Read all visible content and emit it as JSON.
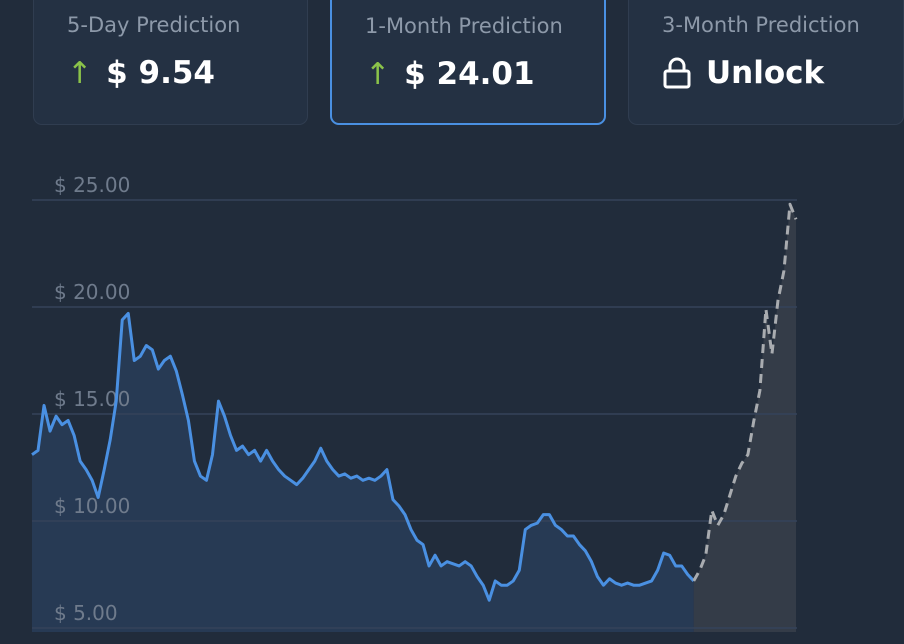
{
  "cards": [
    {
      "label": "5-Day Prediction",
      "value": "$ 9.54"
    },
    {
      "label": "1-Month Prediction",
      "value": "$ 24.01"
    },
    {
      "label": "3-Month Prediction",
      "value": "Unlock"
    }
  ],
  "chart_data": {
    "type": "line",
    "ylim": [
      5,
      25
    ],
    "yticks": [
      {
        "value": 25,
        "label": "$ 25.00"
      },
      {
        "value": 20,
        "label": "$ 20.00"
      },
      {
        "value": 15,
        "label": "$ 15.00"
      },
      {
        "value": 10,
        "label": "$ 10.00"
      },
      {
        "value": 5,
        "label": "$ 5.00"
      }
    ],
    "grid": true,
    "series": [
      {
        "color": "#4a90e2",
        "dashed": false,
        "values": [
          13.1,
          13.3,
          15.4,
          14.2,
          14.9,
          14.5,
          14.7,
          14.0,
          12.8,
          12.4,
          11.9,
          11.1,
          12.4,
          13.8,
          15.6,
          19.4,
          19.7,
          17.5,
          17.7,
          18.2,
          18.0,
          17.1,
          17.5,
          17.7,
          17.0,
          15.9,
          14.7,
          12.8,
          12.1,
          11.9,
          13.1,
          15.6,
          14.9,
          14.0,
          13.3,
          13.5,
          13.1,
          13.3,
          12.8,
          13.3,
          12.8,
          12.4,
          12.1,
          11.9,
          11.7,
          12.0,
          12.4,
          12.8,
          13.4,
          12.8,
          12.4,
          12.1,
          12.2,
          12.0,
          12.1,
          11.9,
          12.0,
          11.9,
          12.1,
          12.4,
          11.0,
          10.7,
          10.3,
          9.6,
          9.1,
          8.9,
          7.9,
          8.4,
          7.9,
          8.1,
          8.0,
          7.9,
          8.1,
          7.9,
          7.4,
          7.0,
          6.3,
          7.2,
          7.0,
          7.0,
          7.2,
          7.7,
          9.6,
          9.8,
          9.9,
          10.3,
          10.3,
          9.8,
          9.6,
          9.3,
          9.3,
          8.9,
          8.6,
          8.1,
          7.4,
          7.0,
          7.3,
          7.1,
          7.0,
          7.1,
          7.0,
          7.0,
          7.1,
          7.2,
          7.7,
          8.5,
          8.4,
          7.9,
          7.9,
          7.5,
          7.2,
          null,
          null,
          null,
          null,
          null,
          null,
          null,
          null,
          null,
          null,
          null,
          null,
          null,
          null,
          null,
          null,
          null
        ]
      },
      {
        "color": "#a9acb0",
        "dashed": true,
        "values": [
          null,
          null,
          null,
          null,
          null,
          null,
          null,
          null,
          null,
          null,
          null,
          null,
          null,
          null,
          null,
          null,
          null,
          null,
          null,
          null,
          null,
          null,
          null,
          null,
          null,
          null,
          null,
          null,
          null,
          null,
          null,
          null,
          null,
          null,
          null,
          null,
          null,
          null,
          null,
          null,
          null,
          null,
          null,
          null,
          null,
          null,
          null,
          null,
          null,
          null,
          null,
          null,
          null,
          null,
          null,
          null,
          null,
          null,
          null,
          null,
          null,
          null,
          null,
          null,
          null,
          null,
          null,
          null,
          null,
          null,
          null,
          null,
          null,
          null,
          null,
          null,
          null,
          null,
          null,
          null,
          null,
          null,
          null,
          null,
          null,
          null,
          null,
          null,
          null,
          null,
          null,
          null,
          null,
          null,
          null,
          null,
          null,
          null,
          null,
          null,
          null,
          null,
          null,
          null,
          null,
          null,
          null,
          null,
          null,
          null,
          7.2,
          7.7,
          8.4,
          10.5,
          9.8,
          10.3,
          11.2,
          12.1,
          12.7,
          13.1,
          14.7,
          16.1,
          19.9,
          17.8,
          20.3,
          21.7,
          24.8,
          24.1
        ]
      }
    ]
  }
}
